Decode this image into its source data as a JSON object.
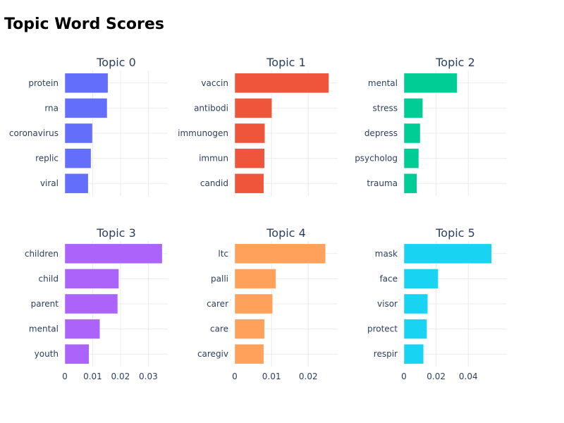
{
  "title": "Topic Word Scores",
  "chart_data": [
    {
      "type": "bar",
      "orientation": "horizontal",
      "title": "Topic 0",
      "color": "#636efa",
      "categories": [
        "protein",
        "rna",
        "coronavirus",
        "replic",
        "viral"
      ],
      "values": [
        0.0155,
        0.0152,
        0.0099,
        0.0094,
        0.0084
      ],
      "xlim": [
        0,
        0.037
      ],
      "xticks": [],
      "grid": true
    },
    {
      "type": "bar",
      "orientation": "horizontal",
      "title": "Topic 1",
      "color": "#ef553b",
      "categories": [
        "vaccin",
        "antibodi",
        "immunogen",
        "immun",
        "candid"
      ],
      "values": [
        0.0256,
        0.0101,
        0.0082,
        0.0081,
        0.0079
      ],
      "xlim": [
        0,
        0.028
      ],
      "xticks": [],
      "grid": true
    },
    {
      "type": "bar",
      "orientation": "horizontal",
      "title": "Topic 2",
      "color": "#00cc96",
      "categories": [
        "mental",
        "stress",
        "depress",
        "psycholog",
        "trauma"
      ],
      "values": [
        0.0331,
        0.0117,
        0.0101,
        0.0092,
        0.008
      ],
      "xlim": [
        0,
        0.064
      ],
      "xticks": [],
      "grid": true
    },
    {
      "type": "bar",
      "orientation": "horizontal",
      "title": "Topic 3",
      "color": "#ab63fa",
      "categories": [
        "children",
        "child",
        "parent",
        "mental",
        "youth"
      ],
      "values": [
        0.035,
        0.0194,
        0.019,
        0.0126,
        0.0087
      ],
      "xlim": [
        0,
        0.037
      ],
      "xticks": [
        {
          "value": 0,
          "label": "0"
        },
        {
          "value": 0.01,
          "label": "0.01"
        },
        {
          "value": 0.02,
          "label": "0.02"
        },
        {
          "value": 0.03,
          "label": "0.03"
        }
      ],
      "grid": true
    },
    {
      "type": "bar",
      "orientation": "horizontal",
      "title": "Topic 4",
      "color": "#ffa15a",
      "categories": [
        "ltc",
        "palli",
        "carer",
        "care",
        "caregiv"
      ],
      "values": [
        0.0247,
        0.0112,
        0.0103,
        0.0081,
        0.0079
      ],
      "xlim": [
        0,
        0.028
      ],
      "xticks": [
        {
          "value": 0,
          "label": "0"
        },
        {
          "value": 0.01,
          "label": "0.01"
        },
        {
          "value": 0.02,
          "label": "0.02"
        }
      ],
      "grid": true
    },
    {
      "type": "bar",
      "orientation": "horizontal",
      "title": "Topic 5",
      "color": "#19d3f3",
      "categories": [
        "mask",
        "face",
        "visor",
        "protect",
        "respir"
      ],
      "values": [
        0.0545,
        0.0213,
        0.0148,
        0.0143,
        0.0122
      ],
      "xlim": [
        0,
        0.064
      ],
      "xticks": [
        {
          "value": 0,
          "label": "0"
        },
        {
          "value": 0.02,
          "label": "0.02"
        },
        {
          "value": 0.04,
          "label": "0.04"
        }
      ],
      "grid": true
    }
  ]
}
